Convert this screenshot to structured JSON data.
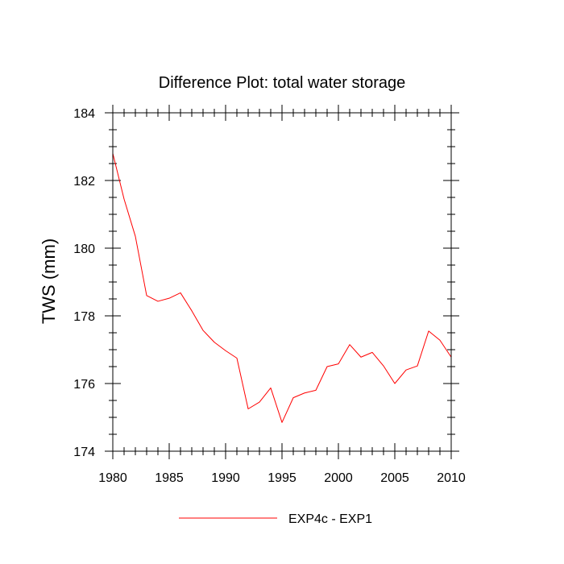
{
  "chart_data": {
    "type": "line",
    "title": "Difference Plot: total water storage",
    "xlabel": "",
    "ylabel": "TWS  (mm)",
    "xlim": [
      1980,
      2010
    ],
    "ylim": [
      174,
      184
    ],
    "x_ticks": [
      1980,
      1985,
      1990,
      1995,
      2000,
      2005,
      2010
    ],
    "y_ticks": [
      174,
      176,
      178,
      180,
      182,
      184
    ],
    "grid": false,
    "legend_position": "bottom-center",
    "series": [
      {
        "name": "EXP4c - EXP1",
        "color": "#ff0000",
        "x": [
          1980,
          1981,
          1982,
          1983,
          1984,
          1985,
          1986,
          1987,
          1988,
          1989,
          1990,
          1991,
          1992,
          1993,
          1994,
          1995,
          1996,
          1997,
          1998,
          1999,
          2000,
          2001,
          2002,
          2003,
          2004,
          2005,
          2006,
          2007,
          2008,
          2009,
          2010
        ],
        "values": [
          182.8,
          181.45,
          180.35,
          178.6,
          178.43,
          178.52,
          178.68,
          178.15,
          177.57,
          177.22,
          176.97,
          176.75,
          175.25,
          175.45,
          175.87,
          174.85,
          175.58,
          175.72,
          175.8,
          176.5,
          176.58,
          177.15,
          176.78,
          176.92,
          176.52,
          176.0,
          176.4,
          176.52,
          177.55,
          177.28,
          176.78
        ]
      }
    ]
  }
}
